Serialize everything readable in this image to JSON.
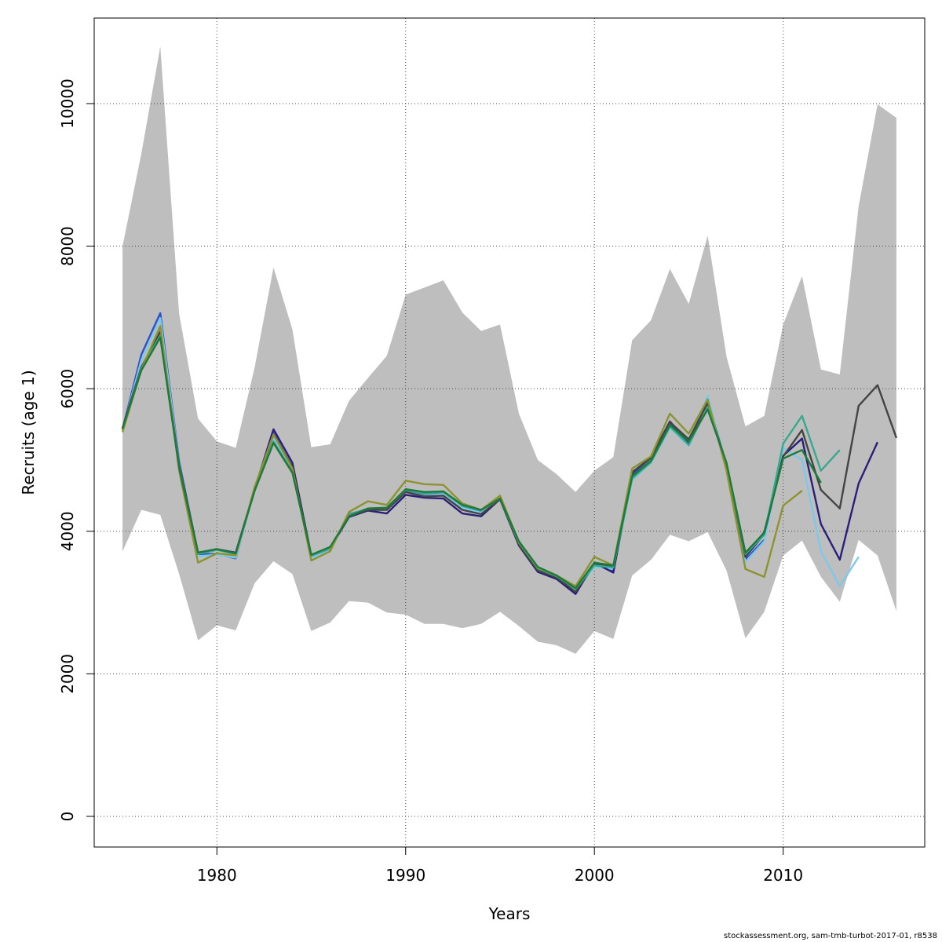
{
  "chart_data": {
    "type": "line",
    "title": "",
    "xlabel": "Years",
    "ylabel": "Recruits (age 1)",
    "xlim": [
      1973.5,
      2017.5
    ],
    "ylim": [
      -430,
      11200
    ],
    "xticks": [
      1980,
      1990,
      2000,
      2010
    ],
    "yticks": [
      0,
      2000,
      4000,
      6000,
      8000,
      10000
    ],
    "grid": true,
    "band": {
      "x": [
        1975,
        1976,
        1977,
        1978,
        1979,
        1980,
        1981,
        1982,
        1983,
        1984,
        1985,
        1986,
        1987,
        1988,
        1989,
        1990,
        1991,
        1992,
        1993,
        1994,
        1995,
        1996,
        1997,
        1998,
        1999,
        2000,
        2001,
        2002,
        2003,
        2004,
        2005,
        2006,
        2007,
        2008,
        2009,
        2010,
        2011,
        2012,
        2013,
        2014,
        2015,
        2016
      ],
      "upper": [
        8000,
        9300,
        10800,
        7050,
        5580,
        5260,
        5170,
        6300,
        7700,
        6830,
        5180,
        5220,
        5830,
        6150,
        6460,
        7320,
        7420,
        7520,
        7070,
        6810,
        6900,
        5650,
        5000,
        4800,
        4550,
        4850,
        5040,
        6680,
        6960,
        7680,
        7190,
        8150,
        6450,
        5470,
        5620,
        6900,
        7580,
        6270,
        6200,
        8560,
        9990,
        9800
      ],
      "lower": [
        3720,
        4300,
        4230,
        3400,
        2470,
        2680,
        2610,
        3270,
        3580,
        3400,
        2600,
        2720,
        3020,
        3000,
        2860,
        2830,
        2700,
        2700,
        2640,
        2700,
        2870,
        2670,
        2450,
        2400,
        2280,
        2600,
        2490,
        3380,
        3600,
        3950,
        3860,
        3990,
        3450,
        2500,
        2870,
        3660,
        3870,
        3360,
        3010,
        3880,
        3660,
        2880
      ]
    },
    "series": [
      {
        "color": "#3050c8",
        "x": [
          1975,
          1976,
          1977,
          1978,
          1979,
          1980,
          1981,
          1982,
          1983,
          1984,
          1985,
          1986,
          1987,
          1988,
          1989,
          1990,
          1991,
          1992,
          1993,
          1994,
          1995,
          1996,
          1997,
          1998,
          1999,
          2000,
          2001,
          2002,
          2003,
          2004,
          2005,
          2006,
          2007,
          2008,
          2009
        ],
        "y": [
          5430,
          6480,
          7060,
          4980,
          3680,
          3680,
          3620,
          4600,
          5380,
          4880,
          3640,
          3740,
          4240,
          4310,
          4320,
          4560,
          4510,
          4530,
          4340,
          4270,
          4460,
          3840,
          3470,
          3360,
          3160,
          3520,
          3450,
          4800,
          5030,
          5500,
          5230,
          5880,
          4910,
          3600,
          3880
        ]
      },
      {
        "color": "#7ec8e8",
        "x": [
          1975,
          1976,
          1977,
          1978,
          1979,
          1980,
          1981,
          1982,
          1983,
          1984,
          1985,
          1986,
          1987,
          1988,
          1989,
          1990,
          1991,
          1992,
          1993,
          1994,
          1995,
          1996,
          1997,
          1998,
          1999,
          2000,
          2001,
          2002,
          2003,
          2004,
          2005,
          2006,
          2007,
          2008,
          2009,
          2010,
          2011,
          2012,
          2013,
          2014
        ],
        "y": [
          5420,
          6400,
          6990,
          4950,
          3650,
          3670,
          3630,
          4580,
          5330,
          4850,
          3630,
          3730,
          4230,
          4300,
          4310,
          4550,
          4500,
          4520,
          4330,
          4260,
          4450,
          3830,
          3470,
          3360,
          3160,
          3500,
          3470,
          4720,
          4960,
          5450,
          5200,
          5900,
          4920,
          3570,
          3860,
          5170,
          5000,
          3720,
          3230,
          3640
        ]
      },
      {
        "color": "#2a1f7a",
        "x": [
          1975,
          1976,
          1977,
          1978,
          1979,
          1980,
          1981,
          1982,
          1983,
          1984,
          1985,
          1986,
          1987,
          1988,
          1989,
          1990,
          1991,
          1992,
          1993,
          1994,
          1995,
          1996,
          1997,
          1998,
          1999,
          2000,
          2001,
          2002,
          2003,
          2004,
          2005,
          2006,
          2007,
          2008,
          2009,
          2010,
          2011,
          2012,
          2013,
          2014,
          2015
        ],
        "y": [
          5450,
          6300,
          6760,
          4930,
          3700,
          3750,
          3700,
          4590,
          5430,
          4960,
          3660,
          3760,
          4200,
          4290,
          4250,
          4510,
          4470,
          4460,
          4250,
          4210,
          4450,
          3800,
          3430,
          3330,
          3120,
          3560,
          3420,
          4820,
          5040,
          5540,
          5250,
          5730,
          4950,
          3640,
          3960,
          5060,
          5300,
          4100,
          3600,
          4670,
          5250
        ]
      },
      {
        "color": "#444444",
        "x": [
          1975,
          1976,
          1977,
          1978,
          1979,
          1980,
          1981,
          1982,
          1983,
          1984,
          1985,
          1986,
          1987,
          1988,
          1989,
          1990,
          1991,
          1992,
          1993,
          1994,
          1995,
          1996,
          1997,
          1998,
          1999,
          2000,
          2001,
          2002,
          2003,
          2004,
          2005,
          2006,
          2007,
          2008,
          2009,
          2010,
          2011,
          2012,
          2013,
          2014,
          2015,
          2016
        ],
        "y": [
          5440,
          6300,
          6800,
          4930,
          3700,
          3750,
          3690,
          4590,
          5360,
          4900,
          3660,
          3760,
          4210,
          4300,
          4300,
          4550,
          4490,
          4500,
          4300,
          4240,
          4450,
          3810,
          3450,
          3350,
          3150,
          3540,
          3500,
          4830,
          5030,
          5530,
          5290,
          5800,
          4940,
          3650,
          3990,
          5050,
          5420,
          4580,
          4320,
          5760,
          6050,
          5310
        ]
      },
      {
        "color": "#3aa88f",
        "x": [
          1975,
          1976,
          1977,
          1978,
          1979,
          1980,
          1981,
          1982,
          1983,
          1984,
          1985,
          1986,
          1987,
          1988,
          1989,
          1990,
          1991,
          1992,
          1993,
          1994,
          1995,
          1996,
          1997,
          1998,
          1999,
          2000,
          2001,
          2002,
          2003,
          2004,
          2005,
          2006,
          2007,
          2008,
          2009,
          2010,
          2011,
          2012,
          2013
        ],
        "y": [
          5420,
          6280,
          6750,
          4900,
          3680,
          3740,
          3680,
          4570,
          5260,
          4830,
          3660,
          3760,
          4230,
          4320,
          4330,
          4580,
          4530,
          4550,
          4360,
          4290,
          4460,
          3840,
          3480,
          3370,
          3190,
          3520,
          3490,
          4740,
          4970,
          5470,
          5210,
          5740,
          4950,
          3680,
          3950,
          5230,
          5620,
          4850,
          5140
        ]
      },
      {
        "color": "#8c9330",
        "x": [
          1975,
          1976,
          1977,
          1978,
          1979,
          1980,
          1981,
          1982,
          1983,
          1984,
          1985,
          1986,
          1987,
          1988,
          1989,
          1990,
          1991,
          1992,
          1993,
          1994,
          1995,
          1996,
          1997,
          1998,
          1999,
          2000,
          2001,
          2002,
          2003,
          2004,
          2005,
          2006,
          2007,
          2008,
          2009,
          2010,
          2011
        ],
        "y": [
          5390,
          6270,
          6880,
          4850,
          3560,
          3690,
          3660,
          4620,
          5360,
          4880,
          3590,
          3720,
          4270,
          4420,
          4370,
          4710,
          4660,
          4650,
          4390,
          4300,
          4500,
          3850,
          3490,
          3380,
          3230,
          3640,
          3520,
          4880,
          5050,
          5650,
          5370,
          5850,
          4850,
          3470,
          3360,
          4360,
          4570
        ]
      },
      {
        "color": "#1e7a3a",
        "x": [
          1975,
          1976,
          1977,
          1978,
          1979,
          1980,
          1981,
          1982,
          1983,
          1984,
          1985,
          1986,
          1987,
          1988,
          1989,
          1990,
          1991,
          1992,
          1993,
          1994,
          1995,
          1996,
          1997,
          1998,
          1999,
          2000,
          2001,
          2002,
          2003,
          2004,
          2005,
          2006,
          2007,
          2008,
          2009,
          2010,
          2011,
          2012
        ],
        "y": [
          5440,
          6260,
          6720,
          4890,
          3700,
          3750,
          3690,
          4570,
          5240,
          4820,
          3670,
          3780,
          4210,
          4320,
          4330,
          4590,
          4550,
          4560,
          4370,
          4300,
          4460,
          3860,
          3500,
          3380,
          3200,
          3560,
          3520,
          4770,
          4990,
          5490,
          5260,
          5710,
          4960,
          3700,
          3980,
          5020,
          5140,
          4680
        ]
      }
    ]
  },
  "footer": "stockassessment.org, sam-tmb-turbot-2017-01, r8538"
}
